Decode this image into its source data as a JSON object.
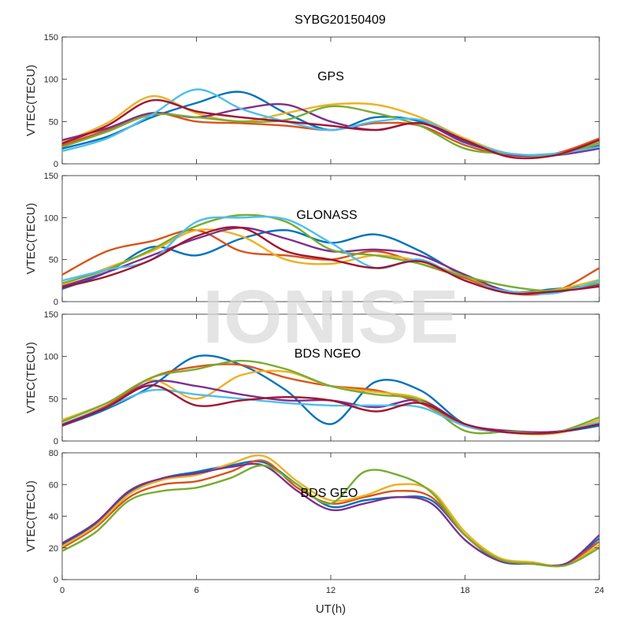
{
  "figure": {
    "title": "SYBG20150409",
    "watermark": "IONISE",
    "xlabel": "UT(h)"
  },
  "colors": [
    "#0072bd",
    "#d95319",
    "#edb120",
    "#7e2f8e",
    "#77ac30",
    "#4dbeee",
    "#a2142f"
  ],
  "chart_data": [
    {
      "type": "line",
      "title": "GPS",
      "ylabel": "VTEC(TECU)",
      "xlim": [
        0,
        24
      ],
      "ylim": [
        0,
        150
      ],
      "xticks": [
        0,
        6,
        12,
        18,
        24
      ],
      "yticks": [
        0,
        50,
        100,
        150
      ],
      "series": [
        {
          "color": 0,
          "x": [
            0,
            2,
            4,
            6,
            8,
            10,
            12,
            14,
            16,
            18,
            20,
            22,
            24
          ],
          "y": [
            18,
            32,
            55,
            72,
            85,
            60,
            40,
            55,
            50,
            25,
            12,
            10,
            22
          ]
        },
        {
          "color": 1,
          "x": [
            0,
            2,
            4,
            6,
            8,
            10,
            12,
            14,
            16,
            18,
            20,
            22,
            24
          ],
          "y": [
            22,
            40,
            60,
            50,
            48,
            45,
            40,
            48,
            45,
            22,
            10,
            12,
            30
          ]
        },
        {
          "color": 2,
          "x": [
            0,
            2,
            4,
            6,
            8,
            10,
            12,
            14,
            16,
            18,
            20,
            22,
            24
          ],
          "y": [
            25,
            48,
            80,
            60,
            50,
            60,
            70,
            70,
            55,
            30,
            12,
            11,
            24
          ]
        },
        {
          "color": 3,
          "x": [
            0,
            2,
            4,
            6,
            8,
            10,
            12,
            14,
            16,
            18,
            20,
            22,
            24
          ],
          "y": [
            28,
            42,
            60,
            55,
            65,
            70,
            50,
            40,
            48,
            26,
            11,
            10,
            18
          ]
        },
        {
          "color": 4,
          "x": [
            0,
            2,
            4,
            6,
            8,
            10,
            12,
            14,
            16,
            18,
            20,
            22,
            24
          ],
          "y": [
            20,
            38,
            58,
            55,
            50,
            52,
            68,
            60,
            45,
            18,
            12,
            10,
            25
          ]
        },
        {
          "color": 5,
          "x": [
            0,
            2,
            4,
            6,
            8,
            10,
            12,
            14,
            16,
            18,
            20,
            22,
            24
          ],
          "y": [
            15,
            30,
            58,
            88,
            65,
            50,
            40,
            50,
            52,
            28,
            12,
            12,
            20
          ]
        },
        {
          "color": 6,
          "x": [
            0,
            2,
            4,
            6,
            8,
            10,
            12,
            14,
            16,
            18,
            20,
            22,
            24
          ],
          "y": [
            24,
            45,
            75,
            62,
            55,
            50,
            45,
            40,
            48,
            28,
            8,
            10,
            28
          ]
        }
      ]
    },
    {
      "type": "line",
      "title": "GLONASS",
      "ylabel": "VTEC(TECU)",
      "xlim": [
        0,
        24
      ],
      "ylim": [
        0,
        150
      ],
      "xticks": [
        0,
        6,
        12,
        18,
        24
      ],
      "yticks": [
        0,
        50,
        100,
        150
      ],
      "series": [
        {
          "color": 0,
          "x": [
            0,
            2,
            4,
            6,
            8,
            10,
            12,
            14,
            16,
            18,
            20,
            22,
            24
          ],
          "y": [
            15,
            35,
            65,
            55,
            75,
            85,
            70,
            80,
            60,
            30,
            12,
            15,
            20
          ]
        },
        {
          "color": 1,
          "x": [
            0,
            2,
            4,
            6,
            8,
            10,
            12,
            14,
            16,
            18,
            20,
            22,
            24
          ],
          "y": [
            32,
            60,
            72,
            85,
            60,
            55,
            50,
            60,
            45,
            28,
            10,
            12,
            40
          ]
        },
        {
          "color": 2,
          "x": [
            0,
            2,
            4,
            6,
            8,
            10,
            12,
            14,
            16,
            18,
            20,
            22,
            24
          ],
          "y": [
            20,
            40,
            60,
            85,
            78,
            50,
            45,
            55,
            48,
            30,
            12,
            14,
            26
          ]
        },
        {
          "color": 3,
          "x": [
            0,
            2,
            4,
            6,
            8,
            10,
            12,
            14,
            16,
            18,
            20,
            22,
            24
          ],
          "y": [
            18,
            35,
            55,
            75,
            88,
            75,
            60,
            62,
            55,
            32,
            12,
            12,
            20
          ]
        },
        {
          "color": 4,
          "x": [
            0,
            2,
            4,
            6,
            8,
            10,
            12,
            14,
            16,
            18,
            20,
            22,
            24
          ],
          "y": [
            22,
            38,
            62,
            90,
            103,
            95,
            62,
            55,
            45,
            30,
            18,
            13,
            22
          ]
        },
        {
          "color": 5,
          "x": [
            0,
            2,
            4,
            6,
            8,
            10,
            12,
            14,
            16,
            18,
            20,
            22,
            24
          ],
          "y": [
            25,
            38,
            50,
            95,
            100,
            98,
            70,
            40,
            50,
            25,
            12,
            10,
            25
          ]
        },
        {
          "color": 6,
          "x": [
            0,
            2,
            4,
            6,
            8,
            10,
            12,
            14,
            16,
            18,
            20,
            22,
            24
          ],
          "y": [
            17,
            30,
            50,
            78,
            88,
            60,
            50,
            40,
            48,
            25,
            10,
            12,
            18
          ]
        }
      ]
    },
    {
      "type": "line",
      "title": "BDS NGEO",
      "ylabel": "VTEC(TECU)",
      "xlim": [
        0,
        24
      ],
      "ylim": [
        0,
        150
      ],
      "xticks": [
        0,
        6,
        12,
        18,
        24
      ],
      "yticks": [
        0,
        50,
        100,
        150
      ],
      "series": [
        {
          "color": 0,
          "x": [
            0,
            2,
            4,
            6,
            8,
            10,
            12,
            14,
            16,
            18,
            20,
            22,
            24
          ],
          "y": [
            18,
            38,
            65,
            100,
            90,
            60,
            20,
            70,
            60,
            20,
            10,
            10,
            18
          ]
        },
        {
          "color": 1,
          "x": [
            0,
            2,
            4,
            6,
            8,
            10,
            12,
            14,
            16,
            18,
            20,
            22,
            24
          ],
          "y": [
            20,
            42,
            75,
            88,
            90,
            75,
            65,
            60,
            45,
            18,
            10,
            9,
            22
          ]
        },
        {
          "color": 2,
          "x": [
            0,
            2,
            4,
            6,
            8,
            10,
            12,
            14,
            16,
            18,
            20,
            22,
            24
          ],
          "y": [
            25,
            45,
            72,
            50,
            78,
            82,
            65,
            58,
            50,
            20,
            10,
            9,
            25
          ]
        },
        {
          "color": 3,
          "x": [
            0,
            2,
            4,
            6,
            8,
            10,
            12,
            14,
            16,
            18,
            20,
            22,
            24
          ],
          "y": [
            18,
            40,
            70,
            65,
            55,
            48,
            48,
            40,
            48,
            20,
            12,
            11,
            20
          ]
        },
        {
          "color": 4,
          "x": [
            0,
            2,
            4,
            6,
            8,
            10,
            12,
            14,
            16,
            18,
            20,
            22,
            24
          ],
          "y": [
            23,
            45,
            75,
            85,
            95,
            85,
            65,
            55,
            48,
            12,
            11,
            10,
            28
          ]
        },
        {
          "color": 5,
          "x": [
            0,
            2,
            4,
            6,
            8,
            10,
            12,
            14,
            16,
            18,
            20,
            22,
            24
          ],
          "y": [
            20,
            40,
            60,
            55,
            50,
            45,
            42,
            42,
            40,
            18,
            10,
            10,
            22
          ]
        },
        {
          "color": 6,
          "x": [
            0,
            2,
            4,
            6,
            8,
            10,
            12,
            14,
            16,
            18,
            20,
            22,
            24
          ],
          "y": [
            19,
            40,
            66,
            42,
            48,
            52,
            48,
            35,
            45,
            20,
            10,
            10,
            20
          ]
        }
      ]
    },
    {
      "type": "line",
      "title": "BDS GEO",
      "ylabel": "VTEC(TECU)",
      "xlim": [
        0,
        24
      ],
      "ylim": [
        0,
        80
      ],
      "xticks": [
        0,
        6,
        12,
        18,
        24
      ],
      "yticks": [
        0,
        20,
        40,
        60,
        80
      ],
      "series": [
        {
          "color": 0,
          "x": [
            0,
            1.5,
            3,
            4.5,
            6,
            7.5,
            9,
            10.5,
            12,
            13.5,
            15,
            16.5,
            18,
            19.5,
            21,
            22.5,
            24
          ],
          "y": [
            22,
            35,
            55,
            64,
            68,
            72,
            74,
            60,
            46,
            50,
            52,
            50,
            28,
            12,
            10,
            10,
            26
          ]
        },
        {
          "color": 1,
          "x": [
            0,
            1.5,
            3,
            4.5,
            6,
            7.5,
            9,
            10.5,
            12,
            13.5,
            15,
            16.5,
            18,
            19.5,
            21,
            22.5,
            24
          ],
          "y": [
            20,
            33,
            52,
            60,
            62,
            68,
            75,
            58,
            48,
            52,
            56,
            52,
            28,
            13,
            10,
            10,
            24
          ]
        },
        {
          "color": 2,
          "x": [
            0,
            1.5,
            3,
            4.5,
            6,
            7.5,
            9,
            10.5,
            12,
            13.5,
            15,
            16.5,
            18,
            19.5,
            21,
            22.5,
            24
          ],
          "y": [
            21,
            34,
            54,
            63,
            66,
            73,
            78,
            62,
            50,
            53,
            60,
            56,
            30,
            14,
            11,
            9,
            22
          ]
        },
        {
          "color": 3,
          "x": [
            0,
            1.5,
            3,
            4.5,
            6,
            7.5,
            9,
            10.5,
            12,
            13.5,
            15,
            16.5,
            18,
            19.5,
            21,
            22.5,
            24
          ],
          "y": [
            23,
            36,
            56,
            64,
            67,
            71,
            72,
            56,
            44,
            48,
            52,
            48,
            25,
            12,
            10,
            10,
            28
          ]
        },
        {
          "color": 4,
          "x": [
            0,
            1.5,
            3,
            4.5,
            6,
            7.5,
            9,
            10.5,
            12,
            13.5,
            15,
            16.5,
            18,
            19.5,
            21,
            22.5,
            24
          ],
          "y": [
            18,
            30,
            50,
            56,
            58,
            64,
            72,
            60,
            48,
            68,
            66,
            55,
            28,
            13,
            10,
            9,
            20
          ]
        }
      ]
    }
  ]
}
